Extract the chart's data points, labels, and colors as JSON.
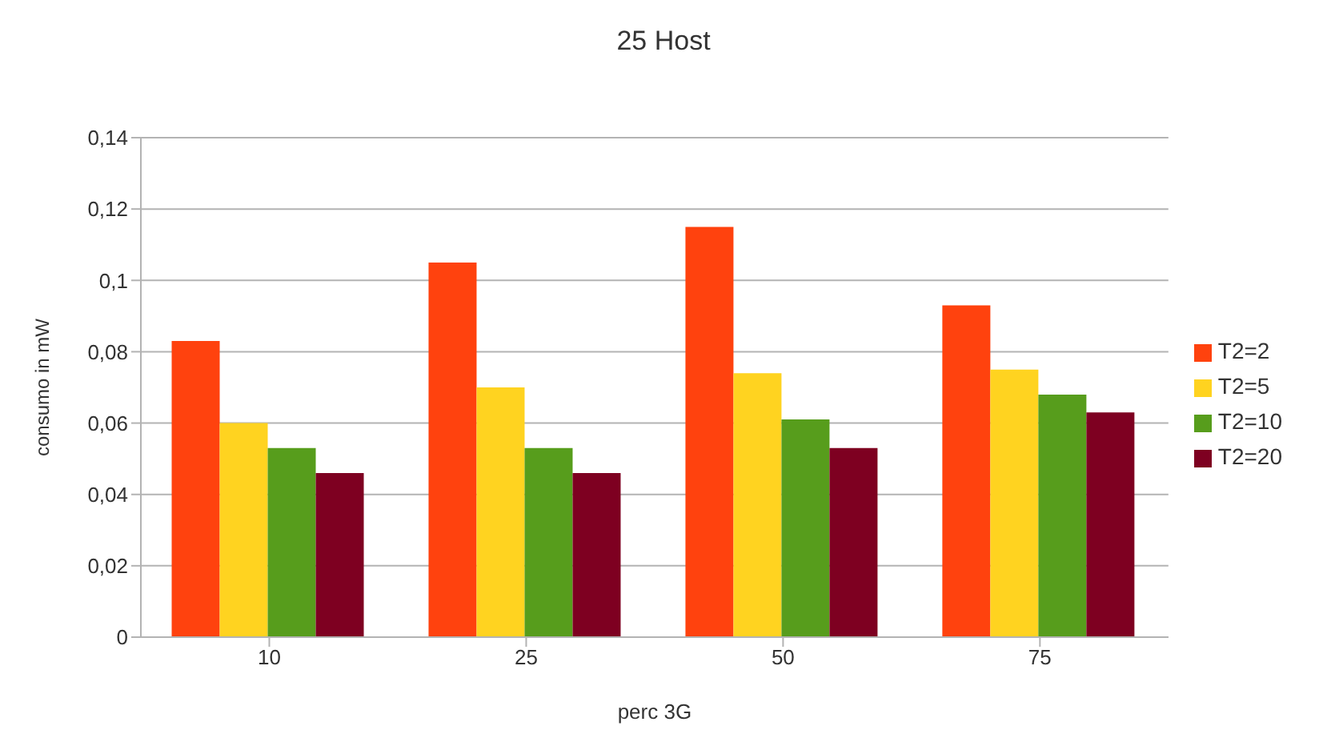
{
  "chart_data": {
    "type": "bar",
    "title": "25 Host",
    "xlabel": "perc 3G",
    "ylabel": "consumo in mW",
    "categories": [
      "10",
      "25",
      "50",
      "75"
    ],
    "series": [
      {
        "name": "T2=2",
        "color": "#ff420e",
        "values": [
          0.083,
          0.105,
          0.115,
          0.093
        ]
      },
      {
        "name": "T2=5",
        "color": "#ffd320",
        "values": [
          0.06,
          0.07,
          0.074,
          0.075
        ]
      },
      {
        "name": "T2=10",
        "color": "#579d1c",
        "values": [
          0.053,
          0.053,
          0.061,
          0.068
        ]
      },
      {
        "name": "T2=20",
        "color": "#7e0021",
        "values": [
          0.046,
          0.046,
          0.053,
          0.063
        ]
      }
    ],
    "ylim": [
      0,
      0.14
    ],
    "yticks": [
      {
        "value": 0,
        "label": "0"
      },
      {
        "value": 0.02,
        "label": "0,02"
      },
      {
        "value": 0.04,
        "label": "0,04"
      },
      {
        "value": 0.06,
        "label": "0,06"
      },
      {
        "value": 0.08,
        "label": "0,08"
      },
      {
        "value": 0.1,
        "label": "0,1"
      },
      {
        "value": 0.12,
        "label": "0,12"
      },
      {
        "value": 0.14,
        "label": "0,14"
      }
    ],
    "grid": "y",
    "legend": "right"
  }
}
